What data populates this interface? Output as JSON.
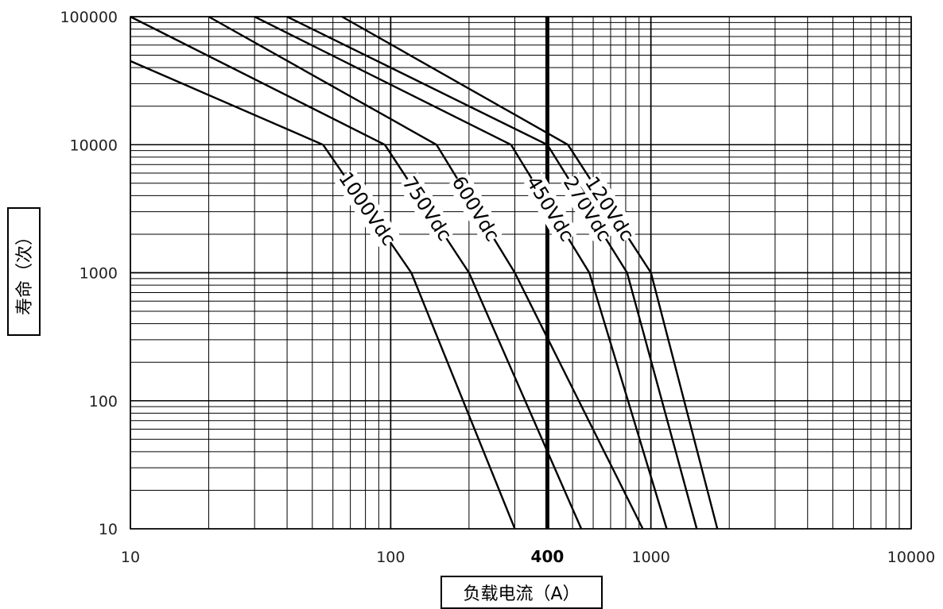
{
  "chart_data": {
    "type": "line",
    "title": "",
    "xlabel": "负载电流（A）",
    "ylabel": "寿命（次）",
    "x_scale": "log",
    "y_scale": "log",
    "xlim": [
      10,
      10000
    ],
    "ylim": [
      10,
      100000
    ],
    "x_ticks": [
      "10",
      "100",
      "1000",
      "10000"
    ],
    "y_ticks": [
      "10",
      "100",
      "1000",
      "10000",
      "100000"
    ],
    "grid": true,
    "legend": "none (labels placed on curves)",
    "marker": {
      "x": 400,
      "label": "400"
    },
    "series": [
      {
        "name": "1000Vdc",
        "points": [
          [
            10,
            45000
          ],
          [
            55,
            10000
          ],
          [
            120,
            1000
          ],
          [
            300,
            10
          ]
        ]
      },
      {
        "name": "750Vdc",
        "points": [
          [
            10,
            100000
          ],
          [
            95,
            10000
          ],
          [
            200,
            1000
          ],
          [
            540,
            10
          ]
        ]
      },
      {
        "name": "600Vdc",
        "points": [
          [
            20,
            100000
          ],
          [
            150,
            10000
          ],
          [
            300,
            1000
          ],
          [
            930,
            10
          ]
        ]
      },
      {
        "name": "450Vdc",
        "points": [
          [
            30,
            100000
          ],
          [
            290,
            10000
          ],
          [
            580,
            1000
          ],
          [
            1150,
            10
          ]
        ]
      },
      {
        "name": "270Vdc",
        "points": [
          [
            40,
            100000
          ],
          [
            400,
            10000
          ],
          [
            810,
            1000
          ],
          [
            1500,
            10
          ]
        ]
      },
      {
        "name": "120Vdc",
        "points": [
          [
            65,
            100000
          ],
          [
            480,
            10000
          ],
          [
            1000,
            1000
          ],
          [
            1800,
            10
          ]
        ]
      }
    ]
  }
}
